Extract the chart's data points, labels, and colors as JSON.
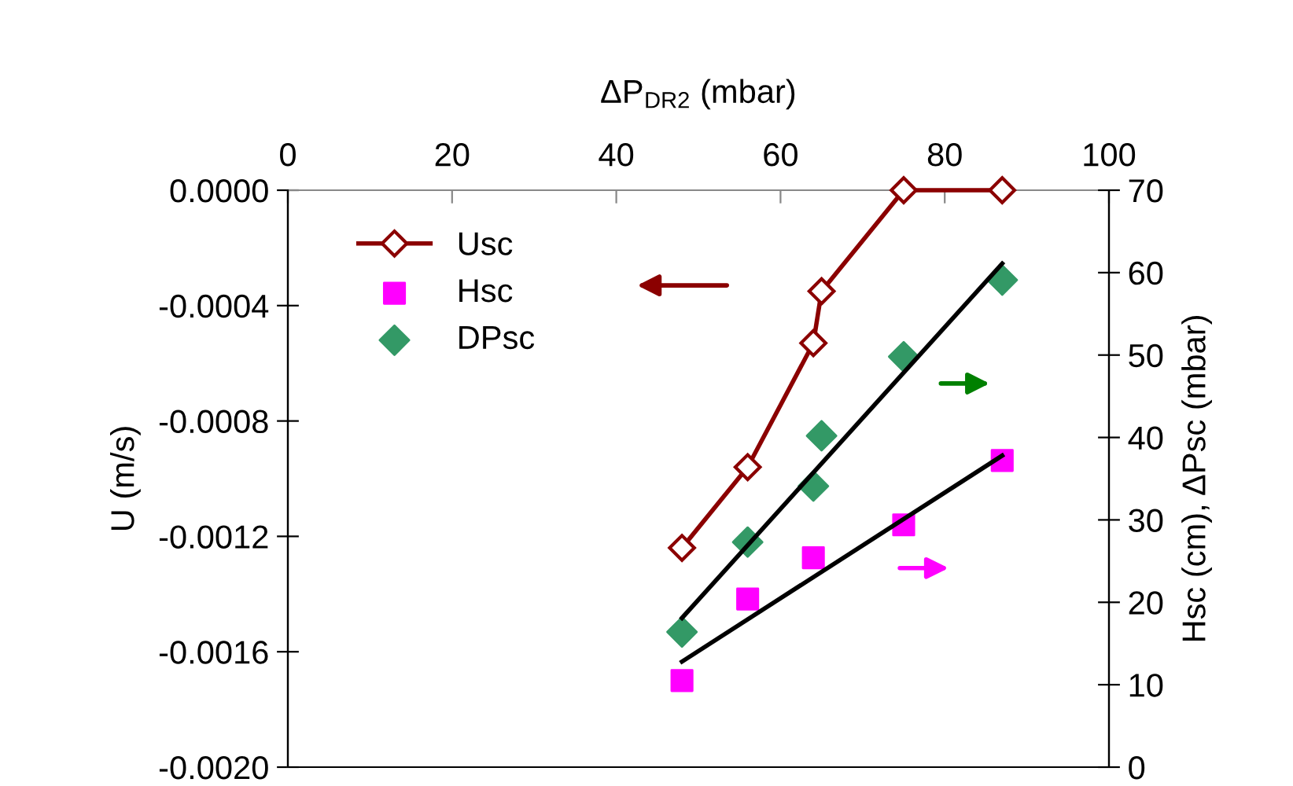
{
  "chart_data": {
    "type": "line",
    "xlabel": "ΔP$_{DR2}$ (mbar)",
    "ylabel": "U (m/s)",
    "y2label": "Hsc (cm), ΔPsc (mbar)",
    "xlim": [
      0,
      100
    ],
    "xticks": [
      0,
      20,
      40,
      60,
      80,
      100
    ],
    "ylim": [
      -0.002,
      0
    ],
    "yticks": [
      {
        "value": -0.002,
        "label": "-0.0020"
      },
      {
        "value": -0.0016,
        "label": "-0.0016"
      },
      {
        "value": -0.0012,
        "label": "-0.0012"
      },
      {
        "value": -0.0008,
        "label": "-0.0008"
      },
      {
        "value": -0.0004,
        "label": "-0.0004"
      },
      {
        "value": 0,
        "label": "0.0000"
      }
    ],
    "y2lim": [
      0,
      70
    ],
    "y2ticks": [
      0,
      10,
      20,
      30,
      40,
      50,
      60,
      70
    ],
    "grid": false,
    "legend": "top left",
    "series": [
      {
        "name": "Usc",
        "color": "#8b0000",
        "marker": "diamond",
        "x": [
          48,
          56,
          64,
          65,
          75,
          87
        ],
        "values": [
          -0.00124,
          -0.00096,
          -0.00053,
          -0.00035,
          0,
          0
        ]
      },
      {
        "name": "Hsc",
        "type": "scatter",
        "color": "#ff00ff",
        "marker": "square",
        "axis": "y2",
        "x": [
          48,
          56,
          64,
          75,
          87
        ],
        "values": [
          10.5,
          20.4,
          25.4,
          29.4,
          37.2
        ]
      },
      {
        "name": "DPsc",
        "type": "scatter",
        "color": "#339966",
        "marker": "diamond",
        "axis": "y2",
        "x": [
          48,
          56,
          64,
          65,
          75,
          87
        ],
        "values": [
          16.4,
          27.3,
          34.1,
          40.2,
          49.8,
          59.1
        ]
      },
      {
        "color": "#000000",
        "marker": "none",
        "axis": "y2",
        "x": [
          48,
          87
        ],
        "values": [
          12.8,
          37.8
        ]
      },
      {
        "color": "#000000",
        "marker": "none",
        "axis": "y2",
        "x": [
          48,
          87
        ],
        "values": [
          18.1,
          61.1
        ]
      }
    ]
  }
}
